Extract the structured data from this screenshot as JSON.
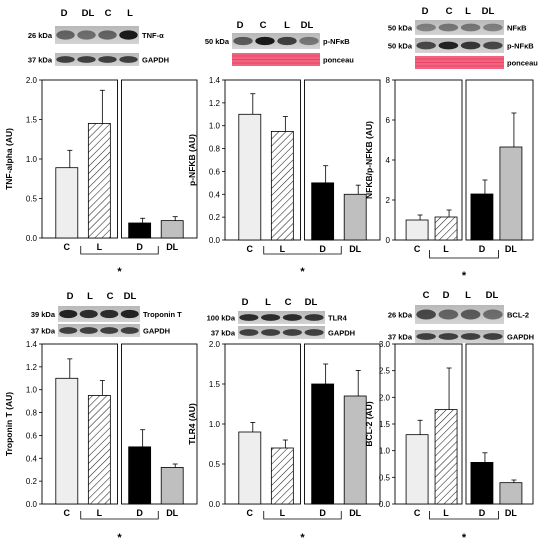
{
  "colors": {
    "C": "#eeeeee",
    "L": "#ffffff",
    "D": "#000000",
    "DL": "#bfbfbf",
    "ponceau": "#f2637f"
  },
  "chart_data": [
    {
      "type": "bar",
      "ylabel": "TNF-alpha (AU)",
      "categories": [
        "C",
        "L",
        "D",
        "DL"
      ],
      "values": [
        0.89,
        1.45,
        0.19,
        0.22
      ],
      "errors": [
        0.22,
        0.42,
        0.06,
        0.05
      ],
      "ylim": [
        0,
        2.0
      ],
      "yticks": [
        "0.0",
        "0.5",
        "1.0",
        "1.5",
        "2.0"
      ],
      "ytick_values": [
        0,
        0.5,
        1.0,
        1.5,
        2.0
      ],
      "significance": "*",
      "blot": {
        "lanes": [
          "D",
          "DL",
          "C",
          "L"
        ],
        "rows": [
          {
            "kda": "26 kDa",
            "protein": "TNF-α"
          },
          {
            "kda": "37 kDa",
            "protein": "GAPDH"
          }
        ]
      }
    },
    {
      "type": "bar",
      "ylabel": "p-NFKB (AU)",
      "categories": [
        "C",
        "L",
        "D",
        "DL"
      ],
      "values": [
        1.1,
        0.95,
        0.5,
        0.4
      ],
      "errors": [
        0.18,
        0.13,
        0.15,
        0.08
      ],
      "ylim": [
        0,
        1.4
      ],
      "yticks": [
        "0.0",
        "0.2",
        "0.4",
        "0.6",
        "0.8",
        "1.0",
        "1.2",
        "1.4"
      ],
      "ytick_values": [
        0,
        0.2,
        0.4,
        0.6,
        0.8,
        1.0,
        1.2,
        1.4
      ],
      "significance": "*",
      "blot": {
        "lanes": [
          "D",
          "C",
          "L",
          "DL"
        ],
        "rows": [
          {
            "kda": "50 kDa",
            "protein": "p-NFκB"
          },
          {
            "kda": "",
            "protein": "ponceau"
          }
        ]
      }
    },
    {
      "type": "bar",
      "ylabel": "NFKB/p-NFKB (AU)",
      "categories": [
        "C",
        "L",
        "D",
        "DL"
      ],
      "values": [
        1.0,
        1.15,
        2.3,
        4.65
      ],
      "errors": [
        0.25,
        0.35,
        0.7,
        1.7
      ],
      "ylim": [
        0,
        8
      ],
      "yticks": [
        "0",
        "2",
        "4",
        "6",
        "8"
      ],
      "ytick_values": [
        0,
        2,
        4,
        6,
        8
      ],
      "significance": "*",
      "blot": {
        "lanes": [
          "D",
          "C",
          "L",
          "DL"
        ],
        "rows": [
          {
            "kda": "50 kDa",
            "protein": "NFκB"
          },
          {
            "kda": "50 kDa",
            "protein": "p-NFκB"
          },
          {
            "kda": "",
            "protein": "ponceau"
          }
        ]
      }
    },
    {
      "type": "bar",
      "ylabel": "Troponin T (AU)",
      "categories": [
        "C",
        "L",
        "D",
        "DL"
      ],
      "values": [
        1.1,
        0.95,
        0.5,
        0.32
      ],
      "errors": [
        0.17,
        0.13,
        0.15,
        0.03
      ],
      "ylim": [
        0,
        1.4
      ],
      "yticks": [
        "0.0",
        "0.2",
        "0.4",
        "0.6",
        "0.8",
        "1.0",
        "1.2",
        "1.4"
      ],
      "ytick_values": [
        0,
        0.2,
        0.4,
        0.6,
        0.8,
        1.0,
        1.2,
        1.4
      ],
      "significance": "*",
      "blot": {
        "lanes": [
          "D",
          "L",
          "C",
          "DL"
        ],
        "rows": [
          {
            "kda": "39 kDa",
            "protein": "Troponin T"
          },
          {
            "kda": "37 kDa",
            "protein": "GAPDH"
          }
        ]
      }
    },
    {
      "type": "bar",
      "ylabel": "TLR4 (AU)",
      "categories": [
        "C",
        "L",
        "D",
        "DL"
      ],
      "values": [
        0.9,
        0.7,
        1.5,
        1.35
      ],
      "errors": [
        0.12,
        0.1,
        0.25,
        0.32
      ],
      "ylim": [
        0,
        2.0
      ],
      "yticks": [
        "0.0",
        "0.5",
        "1.0",
        "1.5",
        "2.0"
      ],
      "ytick_values": [
        0,
        0.5,
        1.0,
        1.5,
        2.0
      ],
      "significance": "*",
      "blot": {
        "lanes": [
          "D",
          "L",
          "C",
          "DL"
        ],
        "rows": [
          {
            "kda": "100 kDa",
            "protein": "TLR4"
          },
          {
            "kda": "37 kDa",
            "protein": "GAPDH"
          }
        ]
      }
    },
    {
      "type": "bar",
      "ylabel": "BCL-2 (AU)",
      "categories": [
        "C",
        "L",
        "D",
        "DL"
      ],
      "values": [
        1.3,
        1.77,
        0.78,
        0.4
      ],
      "errors": [
        0.27,
        0.78,
        0.18,
        0.05
      ],
      "ylim": [
        0,
        3.0
      ],
      "yticks": [
        "0.0",
        "0.5",
        "1.0",
        "1.5",
        "2.0",
        "2.5",
        "3.0"
      ],
      "ytick_values": [
        0,
        0.5,
        1.0,
        1.5,
        2.0,
        2.5,
        3.0
      ],
      "significance": "*",
      "blot": {
        "lanes": [
          "C",
          "D",
          "L",
          "DL"
        ],
        "rows": [
          {
            "kda": "26 kDa",
            "protein": "BCL-2"
          },
          {
            "kda": "37 kDa",
            "protein": "GAPDH"
          }
        ]
      }
    }
  ]
}
